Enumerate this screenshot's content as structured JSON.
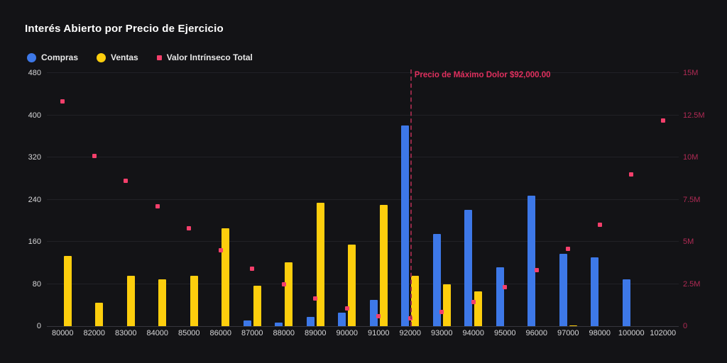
{
  "title": "Interés Abierto por Precio de Ejercicio",
  "colors": {
    "background": "#131316",
    "compras": "#3d78e8",
    "ventas": "#fdce0d",
    "intrinsic_marker": "#f43f6b",
    "intrinsic_axis_text": "#b02a54",
    "annotation_text": "#e02f5e",
    "annotation_line": "#932947",
    "axis_text": "#d6d6d8",
    "gridline": "#212126"
  },
  "legend": [
    {
      "label": "Compras",
      "marker": "circle",
      "color": "#3d78e8"
    },
    {
      "label": "Ventas",
      "marker": "circle",
      "color": "#fdce0d"
    },
    {
      "label": "Valor Intrínseco Total",
      "marker": "square",
      "color": "#f43f6b"
    }
  ],
  "annotation": {
    "label": "Precio de Máximo Dolor $92,000.00",
    "category": "92000"
  },
  "chart_data": {
    "type": "bar",
    "title": "Interés Abierto por Precio de Ejercicio",
    "xlabel": "",
    "ylabel_left": "",
    "ylabel_right": "",
    "grid": true,
    "legend_position": "top-left",
    "categories": [
      "80000",
      "82000",
      "83000",
      "84000",
      "85000",
      "86000",
      "87000",
      "88000",
      "89000",
      "90000",
      "91000",
      "92000",
      "93000",
      "94000",
      "95000",
      "96000",
      "97000",
      "98000",
      "100000",
      "102000"
    ],
    "series": [
      {
        "name": "Compras",
        "type": "bar",
        "axis": "left",
        "color": "#3d78e8",
        "values": [
          0,
          0,
          0,
          0,
          0,
          0,
          11,
          7,
          17,
          25,
          50,
          380,
          175,
          220,
          112,
          247,
          137,
          130,
          89,
          0
        ]
      },
      {
        "name": "Ventas",
        "type": "bar",
        "axis": "left",
        "color": "#fdce0d",
        "values": [
          133,
          44,
          95,
          89,
          96,
          185,
          76,
          121,
          234,
          154,
          230,
          95,
          80,
          66,
          0,
          0,
          2,
          0,
          0,
          0
        ]
      },
      {
        "name": "Valor Intrínseco Total",
        "type": "scatter",
        "axis": "right",
        "color": "#f43f6b",
        "values_millions": [
          13.3,
          10.1,
          8.6,
          7.1,
          5.8,
          4.5,
          3.4,
          2.5,
          1.65,
          1.05,
          0.6,
          0.45,
          0.85,
          1.45,
          2.3,
          3.3,
          4.6,
          6.0,
          9.0,
          12.2
        ]
      }
    ],
    "left_axis": {
      "min": 0,
      "max": 480,
      "ticks": [
        "0",
        "80",
        "160",
        "240",
        "320",
        "400",
        "480"
      ]
    },
    "right_axis": {
      "min": 0,
      "max_millions": 15,
      "ticks": [
        "0",
        "2.5M",
        "5M",
        "7.5M",
        "10M",
        "12.5M",
        "15M"
      ]
    },
    "max_pain_category": "92000"
  }
}
